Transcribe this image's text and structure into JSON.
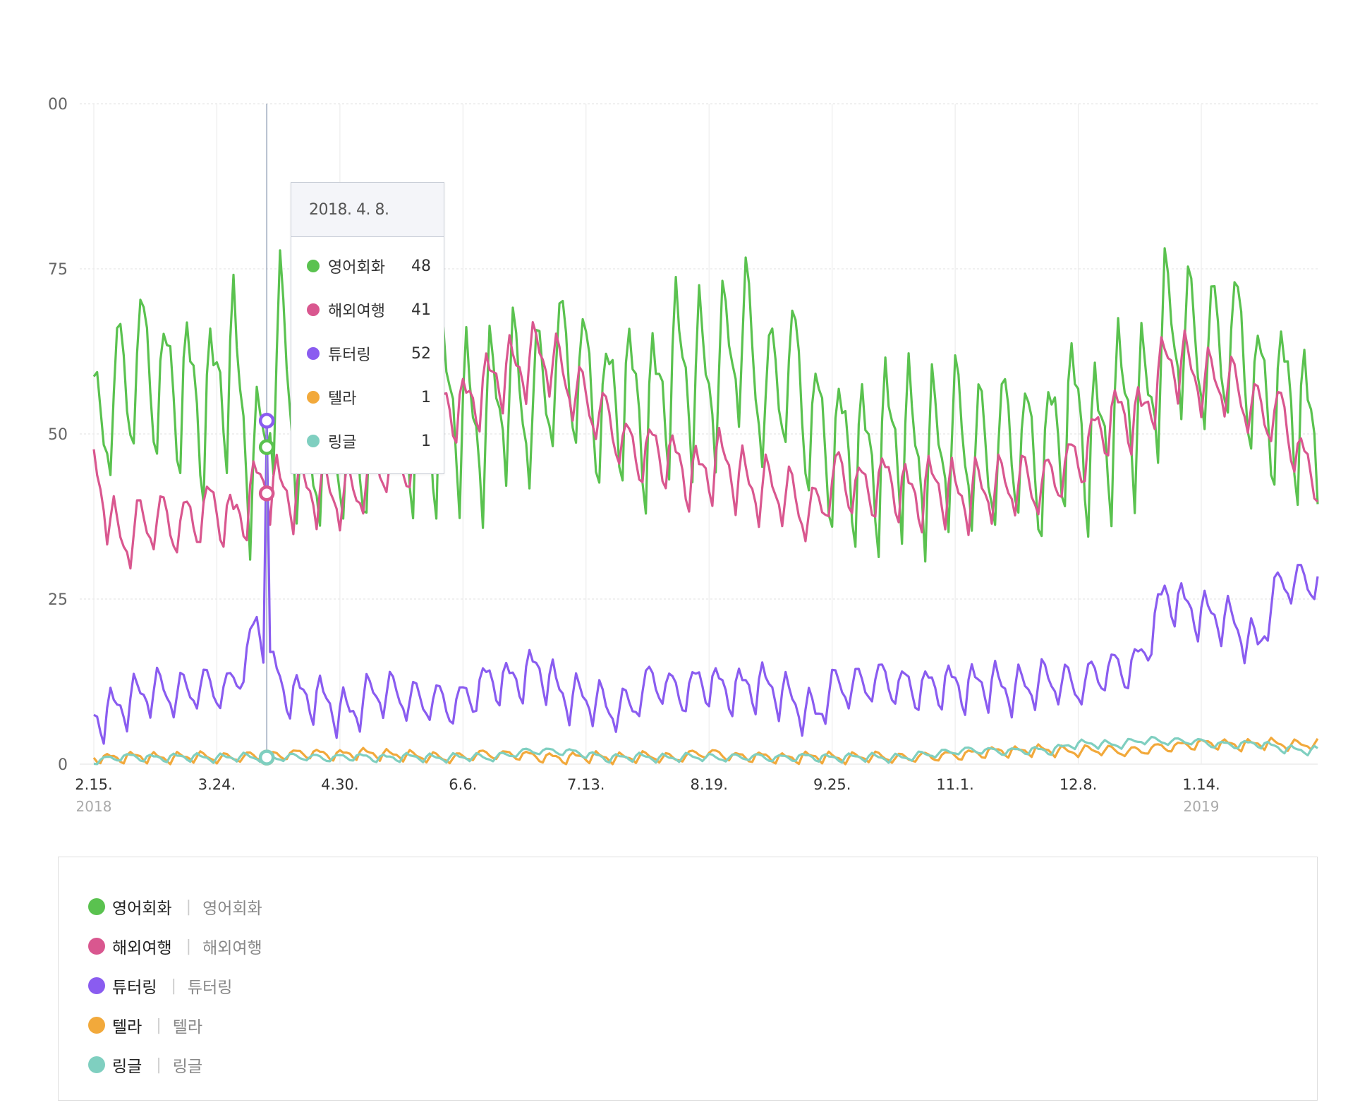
{
  "chart_data": {
    "type": "line",
    "title": "",
    "xlabel": "",
    "ylabel": "",
    "ylim": [
      0,
      100
    ],
    "yticks": [
      0,
      25,
      50,
      75
    ],
    "ytick_top_label": "00",
    "grid": true,
    "x_start": "2018-02-15",
    "x_end": "2019-02-18",
    "x_tick_labels": [
      "2.15.",
      "3.24.",
      "4.30.",
      "6.6.",
      "7.13.",
      "8.19.",
      "9.25.",
      "11.1.",
      "12.8.",
      "1.14."
    ],
    "x_tick_dates": [
      "2018-02-15",
      "2018-03-24",
      "2018-04-30",
      "2018-06-06",
      "2018-07-13",
      "2018-08-19",
      "2018-09-25",
      "2018-11-01",
      "2018-12-08",
      "2019-01-14"
    ],
    "year_labels": [
      {
        "label": "2018",
        "date": "2018-02-15"
      },
      {
        "label": "2019",
        "date": "2019-01-14"
      }
    ],
    "weekly_sample_dates": [
      "2018-02-15",
      "2018-02-22",
      "2018-03-01",
      "2018-03-08",
      "2018-03-15",
      "2018-03-22",
      "2018-03-29",
      "2018-04-05",
      "2018-04-12",
      "2018-04-19",
      "2018-04-26",
      "2018-05-03",
      "2018-05-10",
      "2018-05-17",
      "2018-05-24",
      "2018-05-31",
      "2018-06-07",
      "2018-06-14",
      "2018-06-21",
      "2018-06-28",
      "2018-07-05",
      "2018-07-12",
      "2018-07-19",
      "2018-07-26",
      "2018-08-02",
      "2018-08-09",
      "2018-08-16",
      "2018-08-23",
      "2018-08-30",
      "2018-09-06",
      "2018-09-13",
      "2018-09-20",
      "2018-09-27",
      "2018-10-04",
      "2018-10-11",
      "2018-10-18",
      "2018-10-25",
      "2018-11-01",
      "2018-11-08",
      "2018-11-15",
      "2018-11-22",
      "2018-11-29",
      "2018-12-06",
      "2018-12-13",
      "2018-12-20",
      "2018-12-27",
      "2019-01-03",
      "2019-01-10",
      "2019-01-17",
      "2019-01-24",
      "2019-01-31",
      "2019-02-07",
      "2019-02-14"
    ],
    "series": [
      {
        "name": "영어회화",
        "color": "#5ac24f",
        "weekly_amplitude": 13,
        "values": [
          47,
          55,
          63,
          54,
          58,
          53,
          60,
          44,
          62,
          46,
          48,
          46,
          52,
          58,
          50,
          52,
          53,
          52,
          55,
          56,
          58,
          60,
          52,
          55,
          54,
          58,
          60,
          58,
          65,
          55,
          58,
          52,
          45,
          47,
          48,
          47,
          48,
          47,
          48,
          47,
          47,
          48,
          51,
          50,
          52,
          53,
          65,
          62,
          64,
          62,
          57,
          55,
          50
        ]
      },
      {
        "name": "해외여행",
        "color": "#d9578f",
        "weekly_amplitude": 5,
        "values": [
          44,
          34,
          36,
          36,
          37,
          38,
          37,
          42,
          41,
          42,
          40,
          41,
          44,
          45,
          48,
          53,
          55,
          57,
          60,
          62,
          59,
          56,
          51,
          48,
          47,
          45,
          44,
          45,
          43,
          41,
          40,
          38,
          43,
          42,
          42,
          41,
          42,
          40,
          42,
          41,
          43,
          42,
          45,
          50,
          52,
          53,
          60,
          60,
          58,
          56,
          54,
          52,
          45
        ]
      },
      {
        "name": "튜터링",
        "color": "#8a5cf0",
        "weekly_amplitude": 3.5,
        "values": [
          6,
          9,
          10,
          11,
          11,
          11,
          12,
          20,
          12,
          10,
          9,
          8,
          10,
          11,
          9,
          9,
          10,
          12,
          13,
          14,
          11,
          10,
          8,
          9,
          12,
          11,
          12,
          11,
          12,
          11,
          10,
          7,
          12,
          12,
          12,
          12,
          11,
          12,
          12,
          11,
          12,
          12,
          12,
          13,
          14,
          16,
          25,
          24,
          22,
          21,
          18,
          27,
          28
        ]
      },
      {
        "name": "텔라",
        "color": "#f2a93b",
        "weekly_amplitude": 0.8,
        "values": [
          1,
          1,
          1,
          1,
          1,
          1,
          1,
          1,
          1.5,
          1.5,
          1.5,
          1.5,
          1.5,
          1.5,
          1,
          1,
          1,
          1.5,
          1.5,
          1,
          1,
          1,
          1,
          1,
          1,
          1,
          1.5,
          1.5,
          1,
          1,
          1,
          1,
          1,
          1,
          1,
          1,
          1,
          1.5,
          1.5,
          2,
          2,
          2,
          2,
          2,
          2,
          2,
          2.5,
          3,
          3,
          3,
          3,
          3,
          3
        ]
      },
      {
        "name": "링글",
        "color": "#7fcfc0",
        "weekly_amplitude": 0.6,
        "values": [
          0.5,
          1,
          1,
          1,
          1,
          1,
          1,
          1,
          1,
          1,
          1,
          1,
          1,
          1,
          1,
          1,
          1,
          1,
          1.5,
          2,
          2,
          1.5,
          1,
          1,
          1,
          1,
          1,
          1,
          1,
          1,
          1,
          1,
          1,
          1,
          1,
          1,
          1.5,
          2,
          2,
          2,
          2,
          2,
          3,
          3,
          3,
          3.5,
          3.5,
          3.5,
          3,
          3,
          3,
          2.5,
          2
        ]
      }
    ],
    "hover": {
      "date": "2018-04-08",
      "label": "2018. 4. 8.",
      "values": {
        "영어회화": 48,
        "해외여행": 41,
        "튜터링": 52,
        "텔라": 1,
        "링글": 1
      }
    }
  },
  "tooltip": {
    "date_label": "2018. 4. 8.",
    "rows": [
      {
        "name": "영어회화",
        "value": "48",
        "color": "#5ac24f"
      },
      {
        "name": "해외여행",
        "value": "41",
        "color": "#d9578f"
      },
      {
        "name": "튜터링",
        "value": "52",
        "color": "#8a5cf0"
      },
      {
        "name": "텔라",
        "value": "1",
        "color": "#f2a93b"
      },
      {
        "name": "링글",
        "value": "1",
        "color": "#7fcfc0"
      }
    ]
  },
  "legend": {
    "items": [
      {
        "name": "영어회화",
        "desc": "영어회화",
        "color": "#5ac24f"
      },
      {
        "name": "해외여행",
        "desc": "해외여행",
        "color": "#d9578f"
      },
      {
        "name": "튜터링",
        "desc": "튜터링",
        "color": "#8a5cf0"
      },
      {
        "name": "텔라",
        "desc": "텔라",
        "color": "#f2a93b"
      },
      {
        "name": "링글",
        "desc": "링글",
        "color": "#7fcfc0"
      }
    ]
  }
}
